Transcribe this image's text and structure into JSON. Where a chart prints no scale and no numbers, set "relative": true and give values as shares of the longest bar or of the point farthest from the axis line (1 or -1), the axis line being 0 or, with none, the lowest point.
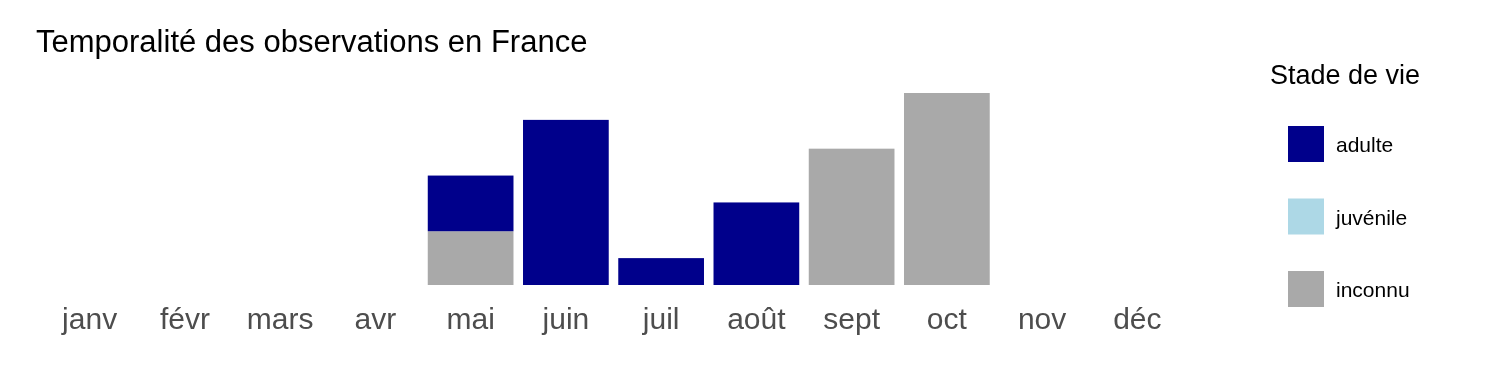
{
  "chart_data": {
    "type": "bar",
    "title": "Temporalité des observations en France",
    "legend_title": "Stade de vie",
    "categories": [
      "janv",
      "févr",
      "mars",
      "avr",
      "mai",
      "juin",
      "juil",
      "août",
      "sept",
      "oct",
      "nov",
      "déc"
    ],
    "stacked": true,
    "relative": true,
    "legend": "right",
    "grid": false,
    "series": [
      {
        "name": "inconnu",
        "color": "#a9a9a9",
        "values": [
          0,
          0,
          0,
          0,
          0.28,
          0,
          0,
          0,
          0.71,
          1,
          0,
          0
        ]
      },
      {
        "name": "juvénile",
        "color": "#add8e6",
        "values": [
          0,
          0,
          0,
          0,
          0,
          0,
          0,
          0,
          0,
          0,
          0,
          0
        ]
      },
      {
        "name": "adulte",
        "color": "#00008b",
        "values": [
          0,
          0,
          0,
          0,
          0.29,
          0.86,
          0.14,
          0.43,
          0,
          0,
          0,
          0
        ]
      }
    ]
  }
}
